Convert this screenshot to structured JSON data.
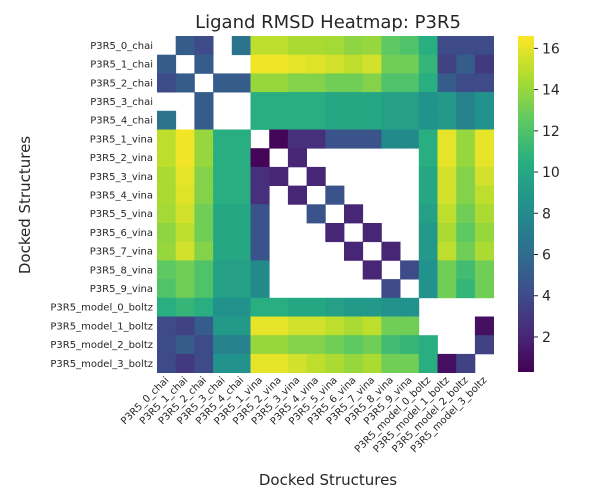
{
  "chart_data": {
    "type": "heatmap",
    "title": "Ligand RMSD Heatmap: P3R5",
    "xlabel": "Docked Structures",
    "ylabel": "Docked Structures",
    "labels": [
      "P3R5_0_chai",
      "P3R5_1_chai",
      "P3R5_2_chai",
      "P3R5_3_chai",
      "P3R5_4_chai",
      "P3R5_1_vina",
      "P3R5_2_vina",
      "P3R5_3_vina",
      "P3R5_4_vina",
      "P3R5_5_vina",
      "P3R5_6_vina",
      "P3R5_7_vina",
      "P3R5_8_vina",
      "P3R5_9_vina",
      "P3R5_model_0_boltz",
      "P3R5_model_1_boltz",
      "P3R5_model_2_boltz",
      "P3R5_model_3_boltz"
    ],
    "colorbar": {
      "min": 0.3,
      "max": 16.6,
      "ticks": [
        2,
        4,
        6,
        8,
        10,
        12,
        14,
        16
      ],
      "colormap": "viridis"
    },
    "note_blank": "null values are not drawn (white cells)",
    "values": [
      [
        null,
        5.0,
        4.0,
        null,
        6.5,
        15.0,
        15.0,
        14.5,
        14.5,
        14.3,
        13.8,
        14.0,
        12.5,
        12.0,
        10.5,
        4.0,
        4.0,
        4.0
      ],
      [
        5.0,
        null,
        5.0,
        null,
        null,
        16.3,
        16.3,
        16.0,
        15.8,
        15.5,
        15.0,
        15.5,
        13.0,
        13.0,
        11.0,
        3.5,
        5.0,
        3.0
      ],
      [
        4.0,
        5.0,
        null,
        5.0,
        5.0,
        14.0,
        14.0,
        13.5,
        13.5,
        13.0,
        13.0,
        13.5,
        12.0,
        12.0,
        10.5,
        5.0,
        4.0,
        4.0
      ],
      [
        null,
        null,
        5.0,
        null,
        null,
        10.5,
        10.5,
        10.5,
        10.5,
        10.0,
        10.0,
        10.0,
        9.5,
        9.5,
        8.5,
        9.0,
        7.5,
        8.5
      ],
      [
        6.5,
        null,
        5.0,
        null,
        null,
        10.5,
        10.5,
        10.5,
        10.5,
        10.0,
        10.0,
        10.0,
        9.5,
        9.5,
        8.5,
        9.0,
        7.5,
        8.5
      ],
      [
        15.0,
        16.3,
        14.0,
        10.5,
        10.5,
        null,
        0.5,
        2.5,
        2.5,
        4.5,
        4.5,
        4.5,
        8.0,
        8.0,
        10.5,
        16.0,
        14.0,
        16.0
      ],
      [
        15.0,
        16.3,
        14.0,
        10.5,
        10.5,
        0.5,
        null,
        2.0,
        null,
        null,
        null,
        null,
        null,
        null,
        10.5,
        16.0,
        14.0,
        16.0
      ],
      [
        14.5,
        16.0,
        13.5,
        10.5,
        10.5,
        2.5,
        2.0,
        null,
        2.0,
        null,
        null,
        null,
        null,
        null,
        10.0,
        15.5,
        13.5,
        15.5
      ],
      [
        14.5,
        15.8,
        13.5,
        10.5,
        10.5,
        2.5,
        null,
        2.0,
        null,
        4.5,
        null,
        null,
        null,
        null,
        10.0,
        15.5,
        13.5,
        15.0
      ],
      [
        14.3,
        15.5,
        13.0,
        10.0,
        10.0,
        4.5,
        null,
        null,
        4.5,
        null,
        2.0,
        null,
        null,
        null,
        9.5,
        15.0,
        13.0,
        14.5
      ],
      [
        13.8,
        15.0,
        13.0,
        10.0,
        10.0,
        4.5,
        null,
        null,
        null,
        2.0,
        null,
        2.0,
        null,
        null,
        9.0,
        14.5,
        12.5,
        14.0
      ],
      [
        14.0,
        15.5,
        13.5,
        10.0,
        10.0,
        4.5,
        null,
        null,
        null,
        null,
        2.0,
        null,
        2.0,
        null,
        9.0,
        15.0,
        13.0,
        14.5
      ],
      [
        12.5,
        13.0,
        12.0,
        9.5,
        9.5,
        8.0,
        null,
        null,
        null,
        null,
        null,
        2.0,
        null,
        4.0,
        8.5,
        13.0,
        11.5,
        13.0
      ],
      [
        12.0,
        13.0,
        12.0,
        9.5,
        9.5,
        8.0,
        null,
        null,
        null,
        null,
        null,
        null,
        4.0,
        null,
        8.5,
        13.0,
        11.0,
        13.0
      ],
      [
        10.5,
        11.0,
        10.5,
        8.5,
        8.5,
        10.5,
        10.5,
        10.0,
        10.0,
        9.5,
        9.0,
        9.0,
        8.5,
        8.5,
        null,
        null,
        null,
        null
      ],
      [
        4.0,
        3.5,
        5.0,
        9.0,
        9.0,
        16.0,
        16.0,
        15.5,
        15.5,
        15.0,
        14.5,
        15.0,
        13.0,
        13.0,
        null,
        null,
        null,
        1.0
      ],
      [
        4.0,
        5.0,
        4.0,
        7.5,
        7.5,
        14.0,
        14.0,
        13.5,
        13.5,
        13.0,
        12.5,
        13.0,
        11.5,
        11.0,
        10.5,
        null,
        null,
        3.5
      ],
      [
        4.0,
        3.0,
        4.0,
        8.5,
        8.5,
        16.0,
        16.0,
        15.5,
        15.0,
        14.5,
        14.0,
        14.5,
        13.0,
        13.0,
        10.5,
        1.0,
        3.5,
        null
      ]
    ]
  }
}
